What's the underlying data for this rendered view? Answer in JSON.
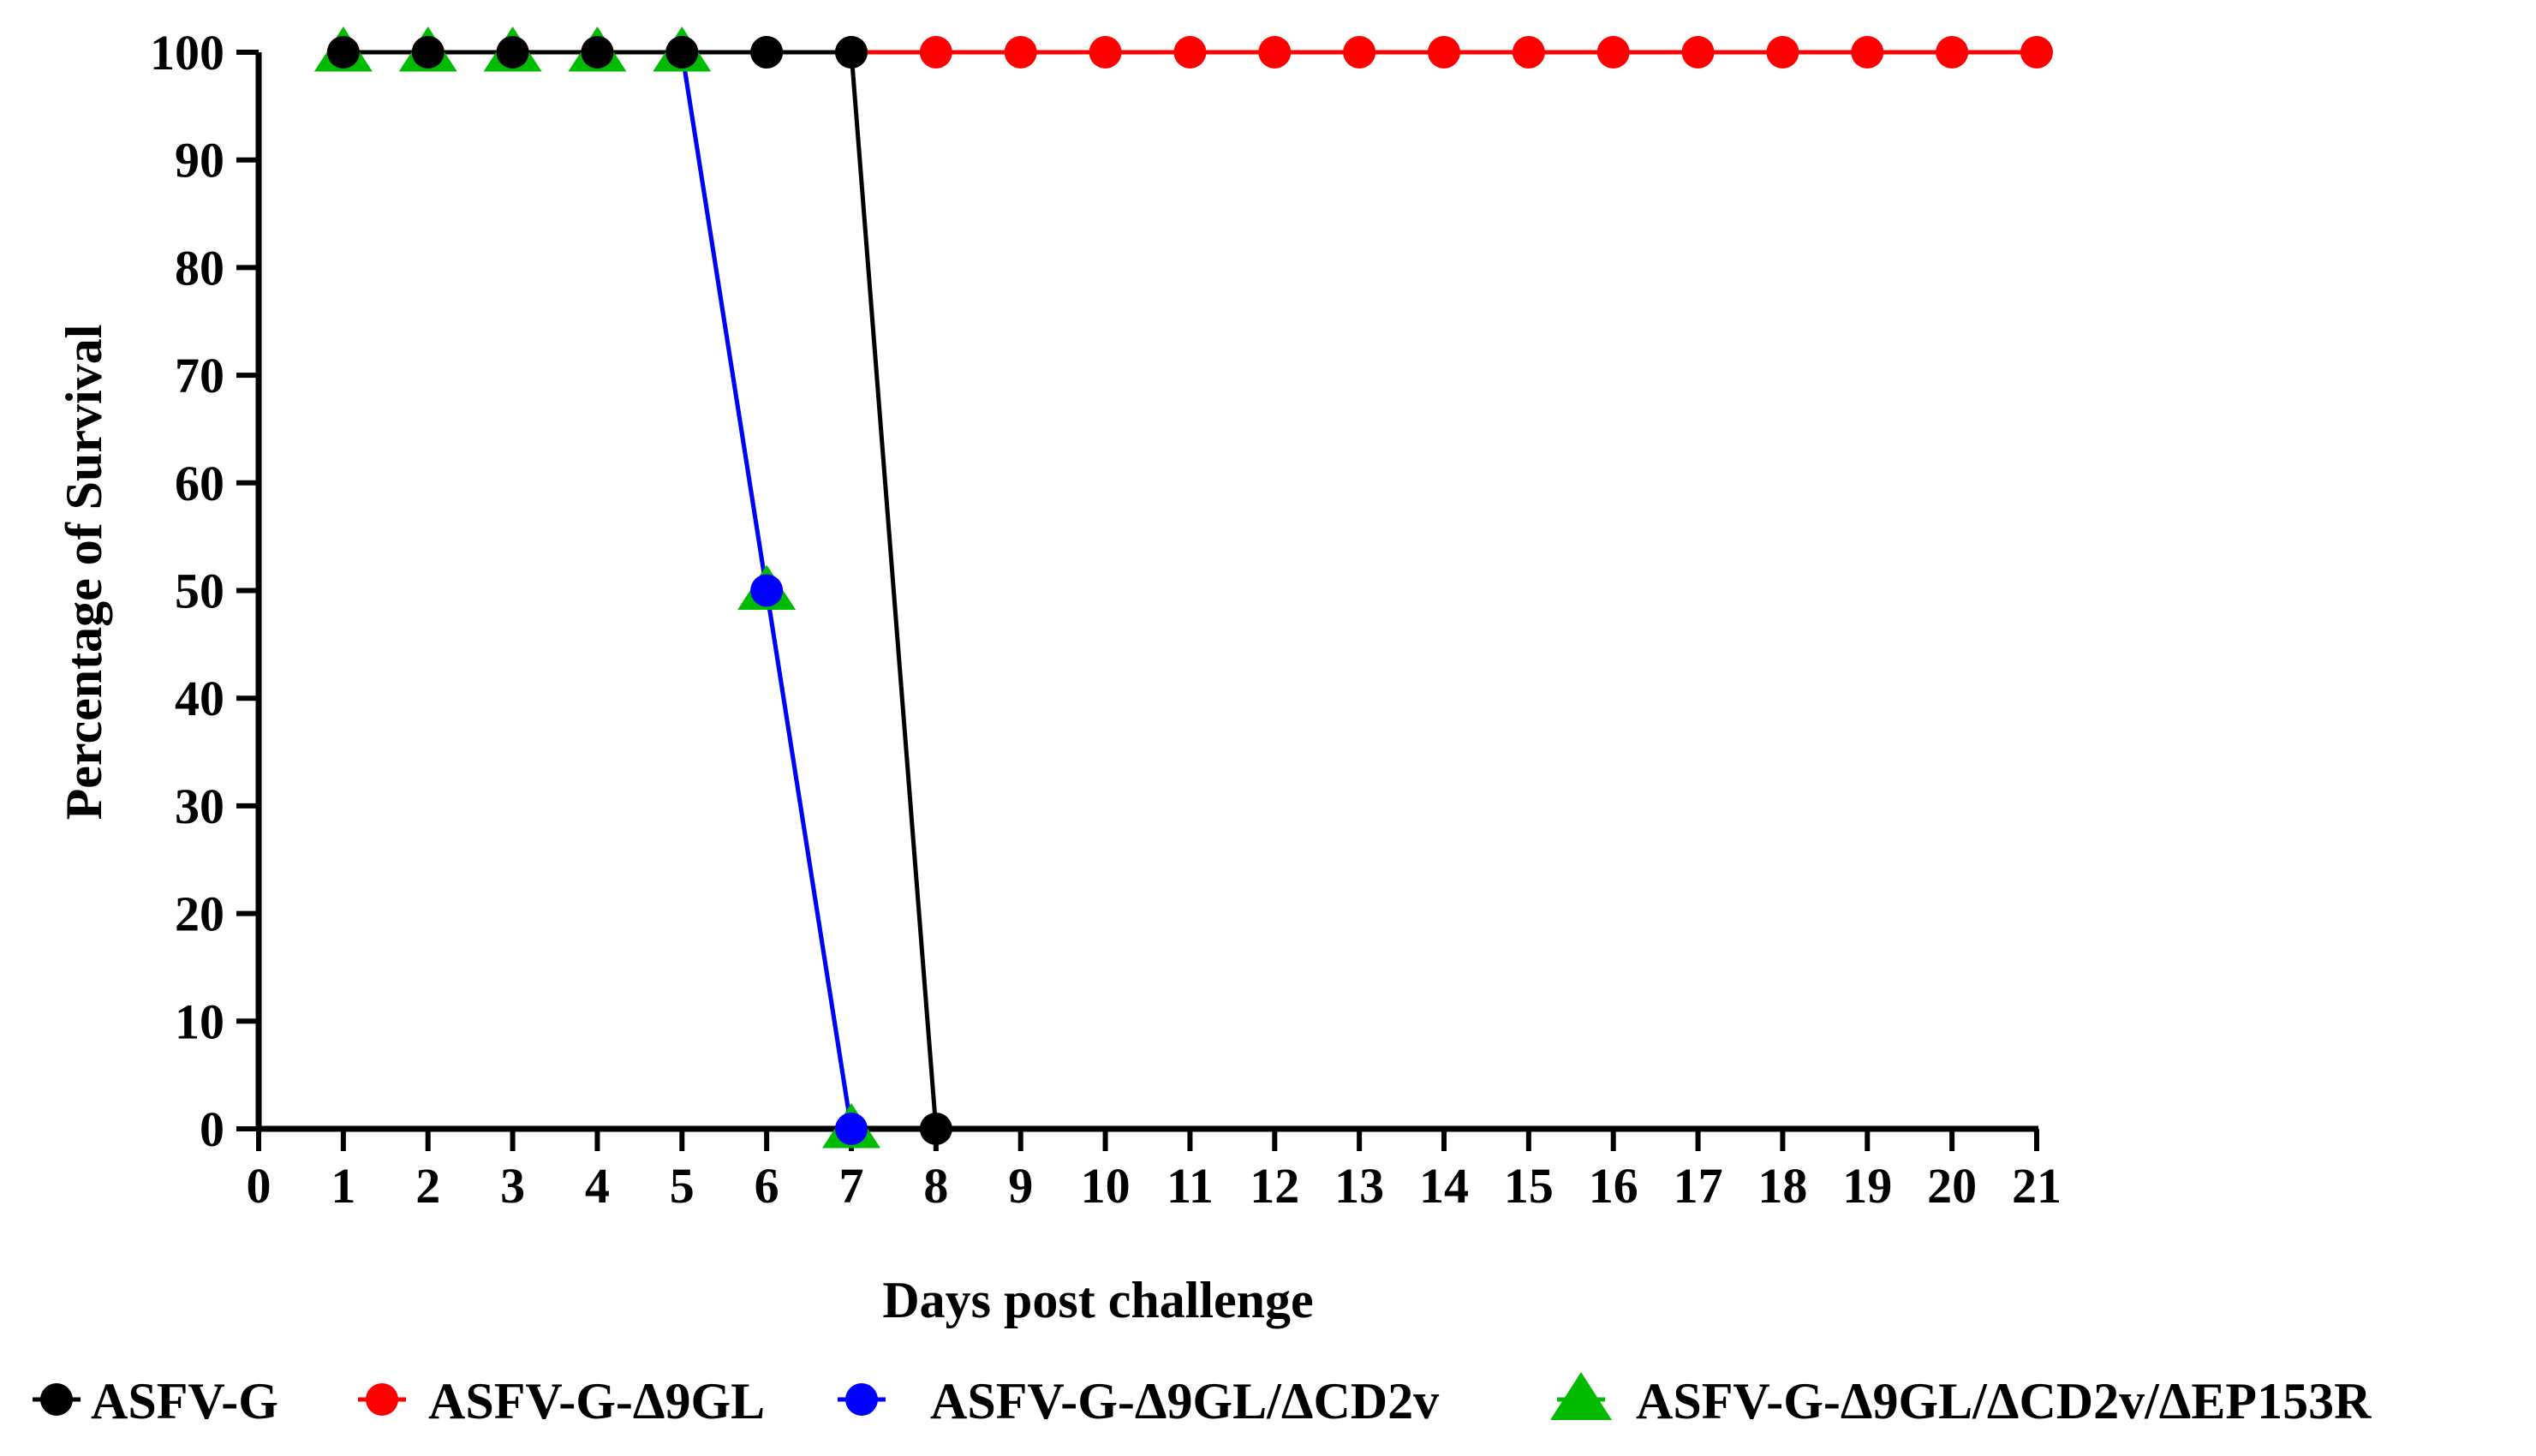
{
  "chart_data": {
    "type": "line",
    "title": "",
    "xlabel": "Days post challenge",
    "ylabel": "Percentage of Survival",
    "xlim": [
      0,
      21
    ],
    "ylim": [
      0,
      100
    ],
    "xticks": [
      0,
      1,
      2,
      3,
      4,
      5,
      6,
      7,
      8,
      9,
      10,
      11,
      12,
      13,
      14,
      15,
      16,
      17,
      18,
      19,
      20,
      21
    ],
    "yticks": [
      0,
      10,
      20,
      30,
      40,
      50,
      60,
      70,
      80,
      90,
      100
    ],
    "grid": false,
    "legend_position": "bottom",
    "series": [
      {
        "name": "ASFV-G-Δ9GL",
        "color": "#ff0000",
        "marker": "circle",
        "x": [
          1,
          2,
          3,
          4,
          5,
          6,
          7,
          8,
          9,
          10,
          11,
          12,
          13,
          14,
          15,
          16,
          17,
          18,
          19,
          20,
          21
        ],
        "y": [
          100,
          100,
          100,
          100,
          100,
          100,
          100,
          100,
          100,
          100,
          100,
          100,
          100,
          100,
          100,
          100,
          100,
          100,
          100,
          100,
          100
        ]
      },
      {
        "name": "ASFV-G-Δ9GL/ΔCD2v/ΔEP153R",
        "color": "#00bb00",
        "marker": "triangle",
        "x": [
          1,
          2,
          3,
          4,
          5,
          6,
          7
        ],
        "y": [
          100,
          100,
          100,
          100,
          100,
          50,
          0
        ]
      },
      {
        "name": "ASFV-G-Δ9GL/ΔCD2v",
        "color": "#0000ff",
        "marker": "circle",
        "x": [
          5,
          6,
          7
        ],
        "y": [
          100,
          50,
          0
        ]
      },
      {
        "name": "ASFV-G",
        "color": "#000000",
        "marker": "circle",
        "x": [
          1,
          2,
          3,
          4,
          5,
          6,
          7,
          8
        ],
        "y": [
          100,
          100,
          100,
          100,
          100,
          100,
          100,
          0
        ]
      }
    ],
    "legend_order": [
      "ASFV-G",
      "ASFV-G-Δ9GL",
      "ASFV-G-Δ9GL/ΔCD2v",
      "ASFV-G-Δ9GL/ΔCD2v/ΔEP153R"
    ]
  }
}
